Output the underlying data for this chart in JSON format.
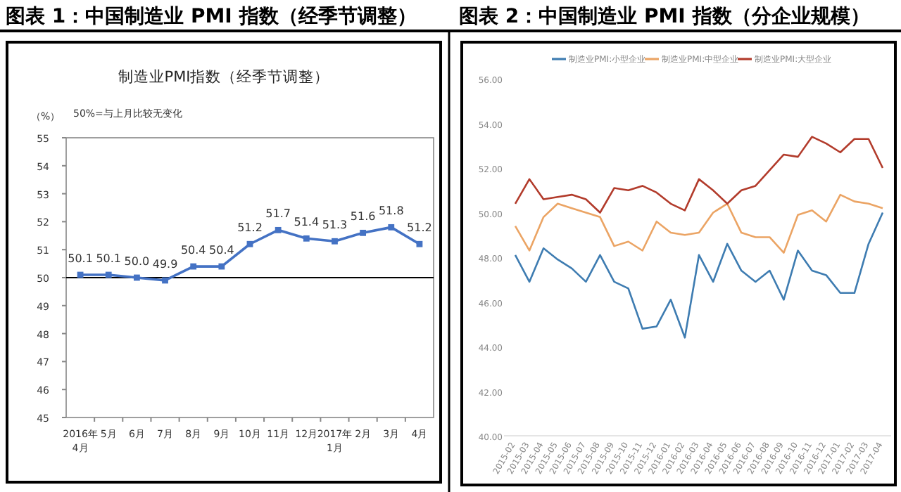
{
  "chart_data": [
    {
      "type": "line",
      "title": "图表 1：中国制造业 PMI 指数（经季节调整）",
      "subtitle": "制造业PMI指数（经季节调整）",
      "ylabel": "（%）",
      "annotations": [
        "50%=与上月比较无变化"
      ],
      "categories": [
        "2016年\n4月",
        "5月",
        "6月",
        "7月",
        "8月",
        "9月",
        "10月",
        "11月",
        "12月",
        "2017年\n1月",
        "2月",
        "3月",
        "4月"
      ],
      "series": [
        {
          "color": "#4472c4",
          "values": [
            50.1,
            50.1,
            50.0,
            49.9,
            50.4,
            50.4,
            51.2,
            51.7,
            51.4,
            51.3,
            51.6,
            51.8,
            51.2
          ],
          "value_labels": [
            "50.1",
            "50.1",
            "50.0",
            "49.9",
            "50.4",
            "50.4",
            "51.2",
            "51.7",
            "51.4",
            "51.3",
            "51.6",
            "51.8",
            "51.2"
          ]
        }
      ],
      "ylim": [
        45,
        55
      ],
      "yticks": [
        45,
        46,
        47,
        48,
        49,
        50,
        51,
        52,
        53,
        54,
        55
      ],
      "marker": "square",
      "grid": false,
      "legend": false,
      "ref_lines": [
        {
          "axis": "y",
          "value": 50,
          "color": "#000000"
        }
      ]
    },
    {
      "type": "line",
      "title": "图表 2：中国制造业 PMI 指数（分企业规模）",
      "categories": [
        "2015-02",
        "2015-03",
        "2015-04",
        "2015-05",
        "2015-06",
        "2015-07",
        "2015-08",
        "2015-09",
        "2015-10",
        "2015-11",
        "2015-12",
        "2016-01",
        "2016-02",
        "2016-03",
        "2016-04",
        "2016-05",
        "2016-06",
        "2016-07",
        "2016-08",
        "2016-09",
        "2016-10",
        "2016-11",
        "2016-12",
        "2017-01",
        "2017-02",
        "2017-03",
        "2017-04"
      ],
      "series": [
        {
          "name": "制造业PMI:小型企业",
          "color": "#3e7cb1",
          "values": [
            48.1,
            46.9,
            48.4,
            47.9,
            47.5,
            46.9,
            48.1,
            46.9,
            46.6,
            44.8,
            44.9,
            46.1,
            44.4,
            48.1,
            46.9,
            48.6,
            47.4,
            46.9,
            47.4,
            46.1,
            48.3,
            47.4,
            47.2,
            46.4,
            46.4,
            48.6,
            50.0
          ]
        },
        {
          "name": "制造业PMI:中型企业",
          "color": "#eba464",
          "values": [
            49.4,
            48.3,
            49.8,
            50.4,
            50.2,
            50.0,
            49.8,
            48.5,
            48.7,
            48.3,
            49.6,
            49.1,
            49.0,
            49.1,
            50.0,
            50.4,
            49.1,
            48.9,
            48.9,
            48.2,
            49.9,
            50.1,
            49.6,
            50.8,
            50.5,
            50.4,
            50.2
          ]
        },
        {
          "name": "制造业PMI:大型企业",
          "color": "#b23b2b",
          "values": [
            50.4,
            51.5,
            50.6,
            50.7,
            50.8,
            50.6,
            50.0,
            51.1,
            51.0,
            51.2,
            50.9,
            50.4,
            50.1,
            51.5,
            51.0,
            50.4,
            51.0,
            51.2,
            51.9,
            52.6,
            52.5,
            53.4,
            53.1,
            52.7,
            53.3,
            53.3,
            52.0
          ]
        }
      ],
      "ylim": [
        40,
        56
      ],
      "yticks": [
        {
          "value": 40,
          "label": "40.00"
        },
        {
          "value": 42,
          "label": "42.00"
        },
        {
          "value": 44,
          "label": "44.00"
        },
        {
          "value": 46,
          "label": "46.00"
        },
        {
          "value": 48,
          "label": "48.00"
        },
        {
          "value": 50,
          "label": "50.00"
        },
        {
          "value": 52,
          "label": "52.00"
        },
        {
          "value": 54,
          "label": "54.00"
        },
        {
          "value": 56,
          "label": "56.00"
        }
      ],
      "marker": "none",
      "grid": false,
      "legend": "top"
    }
  ]
}
